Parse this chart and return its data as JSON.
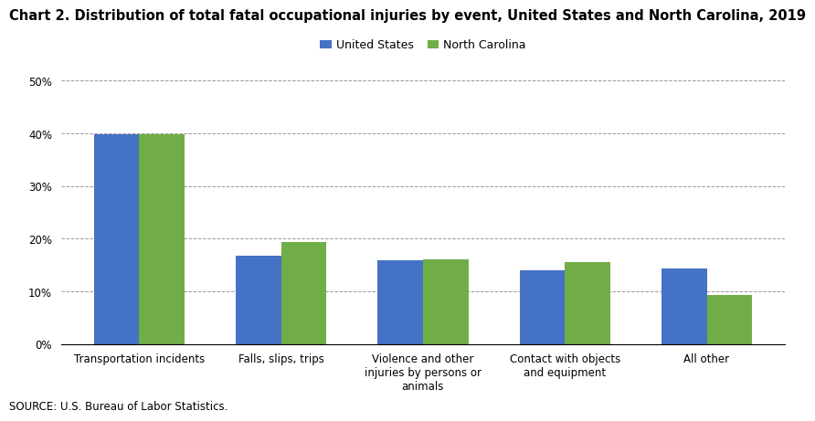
{
  "title": "Chart 2. Distribution of total fatal occupational injuries by event, United States and North Carolina, 2019",
  "categories": [
    "Transportation incidents",
    "Falls, slips, trips",
    "Violence and other\ninjuries by persons or\nanimals",
    "Contact with objects\nand equipment",
    "All other"
  ],
  "us_values": [
    39.9,
    16.7,
    15.9,
    13.9,
    14.4
  ],
  "nc_values": [
    39.8,
    19.4,
    16.1,
    15.6,
    9.3
  ],
  "us_color": "#4472C4",
  "nc_color": "#70AD47",
  "us_label": "United States",
  "nc_label": "North Carolina",
  "ylim": [
    0,
    50
  ],
  "yticks": [
    0,
    10,
    20,
    30,
    40,
    50
  ],
  "ytick_labels": [
    "0%",
    "10%",
    "20%",
    "30%",
    "40%",
    "50%"
  ],
  "source": "SOURCE: U.S. Bureau of Labor Statistics.",
  "bar_width": 0.32,
  "title_fontsize": 10.5,
  "axis_fontsize": 8.5,
  "legend_fontsize": 9,
  "source_fontsize": 8.5
}
